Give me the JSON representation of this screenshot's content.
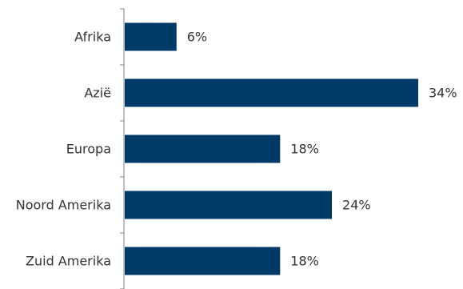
{
  "chart_data": {
    "type": "bar",
    "orientation": "horizontal",
    "categories": [
      "Afrika",
      "Azië",
      "Europa",
      "Noord Amerika",
      "Zuid Amerika"
    ],
    "values": [
      6,
      34,
      18,
      24,
      18
    ],
    "value_labels": [
      "6%",
      "34%",
      "18%",
      "24%",
      "18%"
    ],
    "unit": "%",
    "xlim": [
      0,
      34
    ],
    "grid": false,
    "legend": "none",
    "bar_color": "#003a66",
    "axis_color": "#808080"
  }
}
